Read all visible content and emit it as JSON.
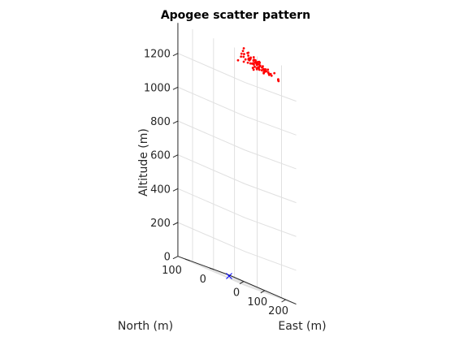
{
  "chart_data": {
    "type": "scatter",
    "projection": "3d",
    "title": "Apogee scatter pattern",
    "xlabel": "East (m)",
    "ylabel": "North (m)",
    "zlabel": "Altitude (m)",
    "x_ticks": [
      "0",
      "100",
      "200"
    ],
    "y_ticks": [
      "0",
      "100"
    ],
    "z_ticks": [
      "0",
      "200",
      "400",
      "600",
      "800",
      "1000",
      "1200"
    ],
    "xlim": [
      -70,
      250
    ],
    "ylim": [
      -60,
      150
    ],
    "zlim": [
      0,
      1380
    ],
    "grid": true,
    "colors": {
      "apogee": "#ff0000",
      "launch": "#0000ff",
      "grid": "#e0e0e0",
      "axis": "#262626"
    },
    "series": [
      {
        "marker": "dot",
        "color": "#ff0000",
        "points": [
          [
            120,
            5,
            1320
          ],
          [
            135,
            10,
            1330
          ],
          [
            140,
            0,
            1310
          ],
          [
            150,
            -5,
            1300
          ],
          [
            125,
            20,
            1340
          ],
          [
            160,
            10,
            1325
          ],
          [
            145,
            15,
            1335
          ],
          [
            130,
            -10,
            1305
          ],
          [
            110,
            0,
            1315
          ],
          [
            155,
            25,
            1345
          ],
          [
            170,
            5,
            1310
          ],
          [
            115,
            15,
            1330
          ],
          [
            138,
            30,
            1350
          ],
          [
            148,
            -15,
            1295
          ],
          [
            128,
            -5,
            1325
          ],
          [
            165,
            20,
            1330
          ],
          [
            152,
            5,
            1340
          ],
          [
            142,
            8,
            1320
          ],
          [
            132,
            12,
            1315
          ],
          [
            122,
            -8,
            1300
          ],
          [
            105,
            10,
            1335
          ],
          [
            175,
            -10,
            1305
          ],
          [
            185,
            0,
            1320
          ],
          [
            95,
            5,
            1310
          ],
          [
            90,
            -20,
            1290
          ],
          [
            200,
            10,
            1300
          ],
          [
            80,
            20,
            1330
          ],
          [
            210,
            -5,
            1315
          ],
          [
            158,
            35,
            1360
          ],
          [
            118,
            40,
            1355
          ],
          [
            136,
            -25,
            1285
          ],
          [
            168,
            -20,
            1290
          ],
          [
            146,
            22,
            1345
          ],
          [
            126,
            28,
            1340
          ],
          [
            156,
            -12,
            1298
          ],
          [
            112,
            -18,
            1292
          ],
          [
            178,
            15,
            1328
          ],
          [
            98,
            25,
            1336
          ],
          [
            188,
            25,
            1322
          ],
          [
            144,
            -2,
            1318
          ],
          [
            134,
            3,
            1326
          ],
          [
            162,
            -3,
            1312
          ],
          [
            124,
            7,
            1322
          ],
          [
            154,
            17,
            1336
          ],
          [
            108,
            -12,
            1302
          ],
          [
            172,
            30,
            1342
          ],
          [
            140,
            45,
            1370
          ],
          [
            70,
            0,
            1305
          ],
          [
            220,
            15,
            1295
          ],
          [
            150,
            50,
            1375
          ],
          [
            100,
            35,
            1350
          ],
          [
            190,
            40,
            1348
          ],
          [
            130,
            55,
            1372
          ],
          [
            82,
            -30,
            1280
          ],
          [
            205,
            -25,
            1282
          ],
          [
            118,
            22,
            1332
          ],
          [
            160,
            -8,
            1308
          ],
          [
            145,
            12,
            1328
          ],
          [
            137,
            18,
            1338
          ],
          [
            127,
            -15,
            1296
          ],
          [
            166,
            8,
            1318
          ],
          [
            176,
            2,
            1316
          ],
          [
            104,
            2,
            1312
          ],
          [
            150,
            28,
            1344
          ],
          [
            182,
            -14,
            1300
          ],
          [
            92,
            12,
            1324
          ],
          [
            240,
            5,
            1290
          ],
          [
            60,
            15,
            1300
          ],
          [
            230,
            45,
            1310
          ],
          [
            195,
            -35,
            1276
          ],
          [
            142,
            62,
            1390
          ],
          [
            132,
            35,
            1356
          ]
        ]
      },
      {
        "marker": "x",
        "color": "#0000ff",
        "points": [
          [
            0,
            0,
            0
          ]
        ]
      }
    ]
  }
}
